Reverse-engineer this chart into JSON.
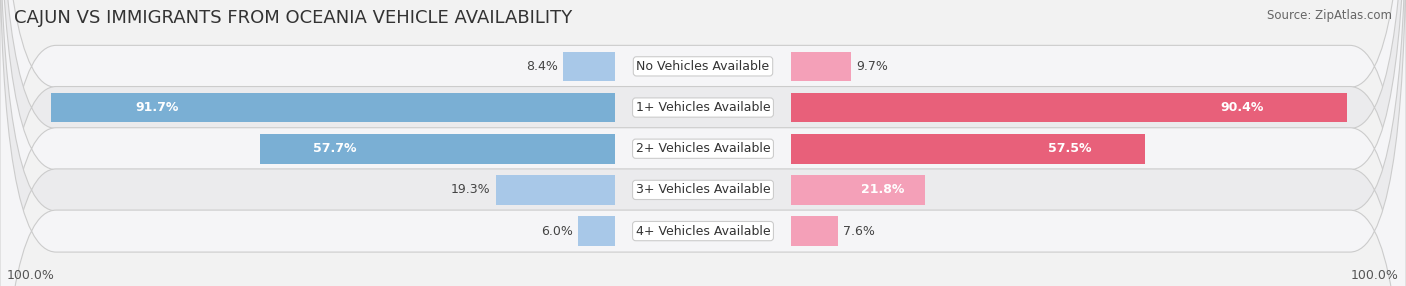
{
  "title": "CAJUN VS IMMIGRANTS FROM OCEANIA VEHICLE AVAILABILITY",
  "source": "Source: ZipAtlas.com",
  "categories": [
    "No Vehicles Available",
    "1+ Vehicles Available",
    "2+ Vehicles Available",
    "3+ Vehicles Available",
    "4+ Vehicles Available"
  ],
  "cajun_values": [
    8.4,
    91.7,
    57.7,
    19.3,
    6.0
  ],
  "oceania_values": [
    9.7,
    90.4,
    57.5,
    21.8,
    7.6
  ],
  "cajun_color_light": "#a8c8e8",
  "cajun_color_dark": "#7aafd4",
  "oceania_color_light": "#f4a0b8",
  "oceania_color_dark": "#e8607a",
  "cajun_label": "Cajun",
  "oceania_label": "Immigrants from Oceania",
  "max_val": 100.0,
  "title_fontsize": 13,
  "label_fontsize": 9,
  "value_fontsize": 9,
  "footer_fontsize": 9,
  "row_colors": [
    "#f5f5f7",
    "#ebebed"
  ],
  "figure_bg": "#f2f2f2"
}
